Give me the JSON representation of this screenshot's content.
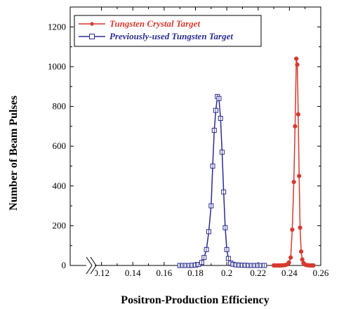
{
  "chart_data": {
    "type": "line",
    "xlabel": "Positron-Production Efficiency",
    "ylabel": "Number of Beam Pulses",
    "xlim": [
      0.1,
      0.26
    ],
    "ylim": [
      0,
      1300
    ],
    "x_ticks": [
      0.12,
      0.14,
      0.16,
      0.18,
      0.2,
      0.22,
      0.24,
      0.26
    ],
    "x_tick_labels": [
      "0.12",
      "0.14",
      "0.16",
      "0.18",
      "0.2",
      "0.22",
      "0.24",
      "0.26"
    ],
    "y_ticks": [
      0,
      200,
      400,
      600,
      800,
      1000,
      1200
    ],
    "y_tick_labels": [
      "0",
      "200",
      "400",
      "600",
      "800",
      "1000",
      "1200"
    ],
    "x_axis_break": true,
    "legend_position": "top-left",
    "grid": false,
    "series": [
      {
        "name": "Tungsten Crystal Target",
        "color": "#d63a2f",
        "marker": "filled-circle",
        "x": [
          0.23,
          0.2313,
          0.2325,
          0.2337,
          0.2349,
          0.2361,
          0.2373,
          0.2385,
          0.2397,
          0.2408,
          0.2418,
          0.2428,
          0.2436,
          0.2444,
          0.245,
          0.2456,
          0.2462,
          0.2468,
          0.2475,
          0.2482,
          0.249,
          0.2499,
          0.2508,
          0.2519,
          0.253,
          0.2542,
          0.2553
        ],
        "y": [
          0,
          0,
          0,
          0,
          0,
          1,
          2,
          5,
          15,
          40,
          180,
          420,
          700,
          1040,
          1010,
          760,
          450,
          190,
          70,
          30,
          12,
          5,
          2,
          1,
          0,
          0,
          0
        ]
      },
      {
        "name": "Previously-used Tungsten Target",
        "color": "#2b2c8f",
        "marker": "open-square",
        "x": [
          0.17,
          0.172,
          0.174,
          0.176,
          0.178,
          0.18,
          0.182,
          0.184,
          0.1855,
          0.187,
          0.1885,
          0.19,
          0.191,
          0.192,
          0.193,
          0.194,
          0.195,
          0.196,
          0.197,
          0.198,
          0.199,
          0.2,
          0.201,
          0.2025,
          0.204,
          0.206,
          0.208,
          0.21,
          0.212,
          0.214,
          0.216,
          0.218,
          0.22,
          0.222,
          0.224
        ],
        "y": [
          0,
          0,
          0,
          0,
          1,
          2,
          5,
          15,
          40,
          80,
          170,
          300,
          500,
          680,
          780,
          850,
          840,
          740,
          570,
          370,
          190,
          80,
          35,
          12,
          6,
          3,
          2,
          1,
          1,
          0,
          0,
          0,
          0,
          0,
          0
        ]
      }
    ]
  }
}
